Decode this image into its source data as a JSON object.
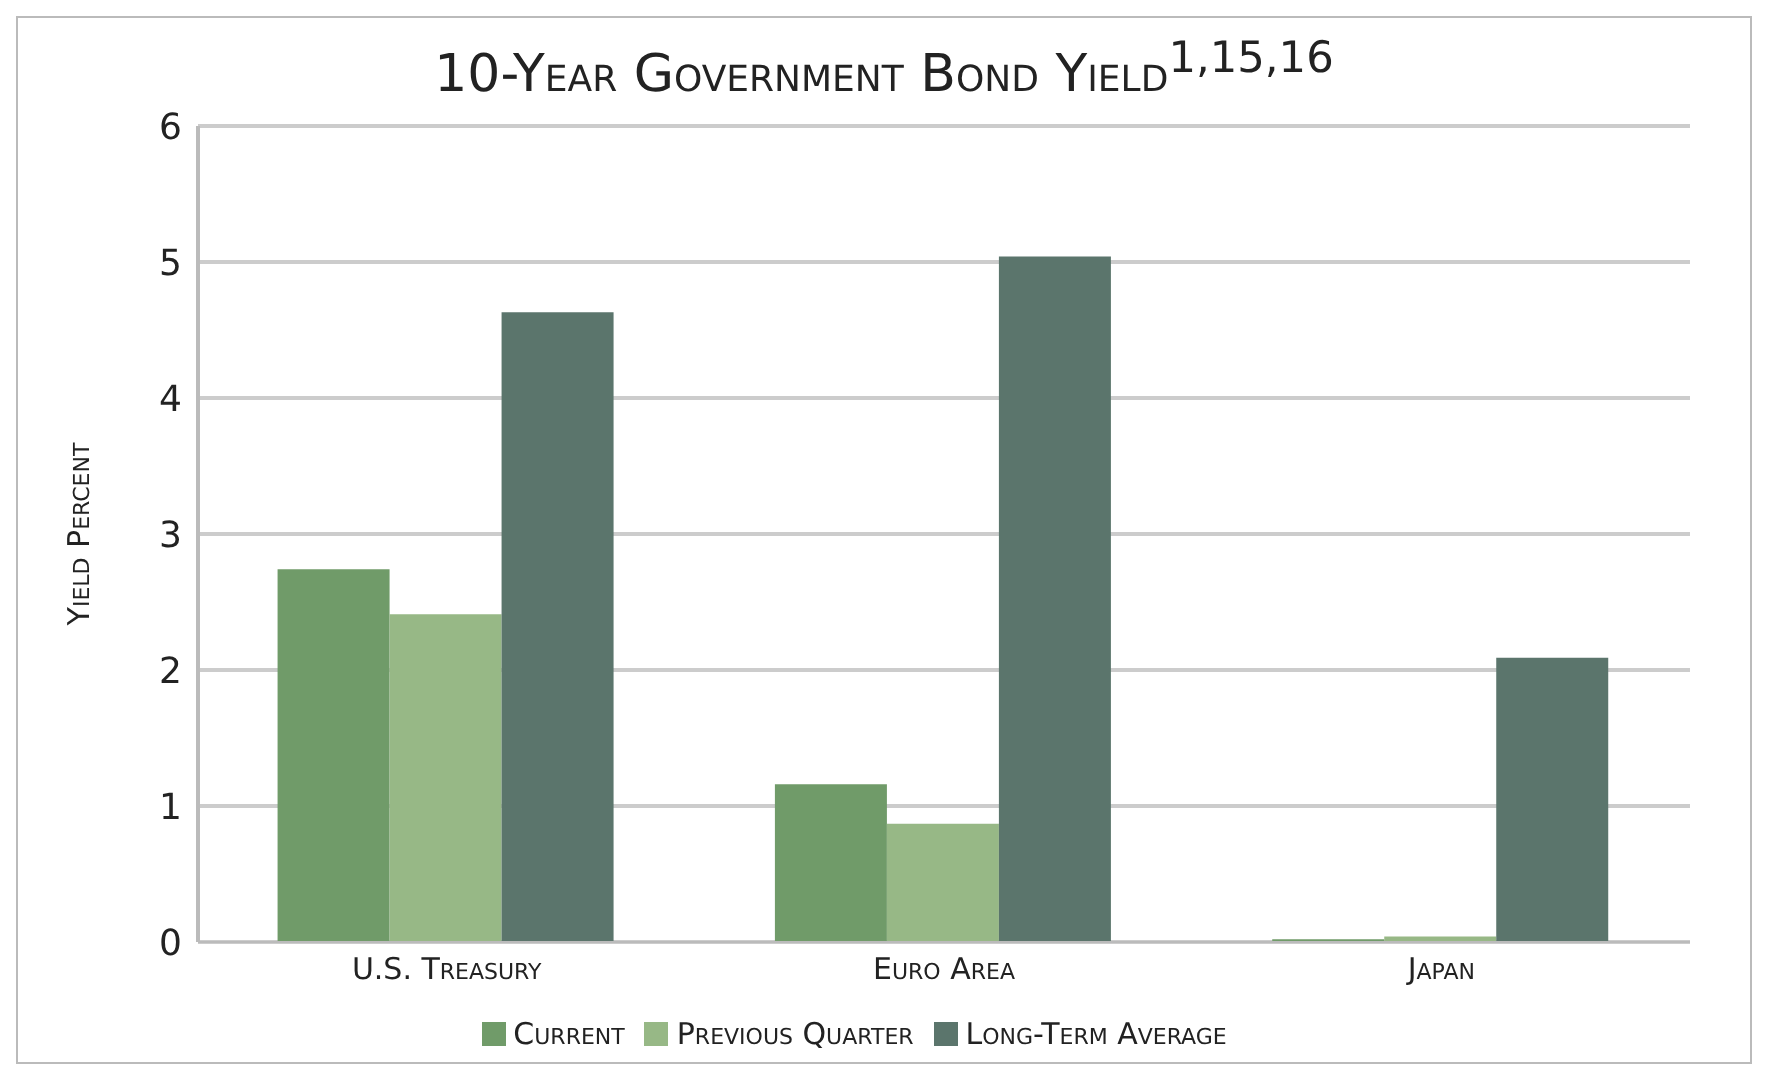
{
  "chart_data": {
    "type": "bar",
    "title": "10-Year Government Bond Yield$^{1,15,16}$",
    "ylabel": "Yield Percent",
    "categories": [
      "U.S. Treasury",
      "Euro Area",
      "Japan"
    ],
    "series": [
      {
        "name": "Current",
        "color": "#709b69",
        "values": [
          2.74,
          1.16,
          0.02
        ]
      },
      {
        "name": "Previous Quarter",
        "color": "#97b886",
        "values": [
          2.41,
          0.87,
          0.04
        ]
      },
      {
        "name": "Long-Term Average",
        "color": "#5b756c",
        "values": [
          4.63,
          5.04,
          2.09
        ]
      }
    ],
    "ylim": [
      0,
      6
    ],
    "yticks": [
      0,
      1,
      2,
      3,
      4,
      5,
      6
    ],
    "grid": "y",
    "legend": "bottom"
  }
}
